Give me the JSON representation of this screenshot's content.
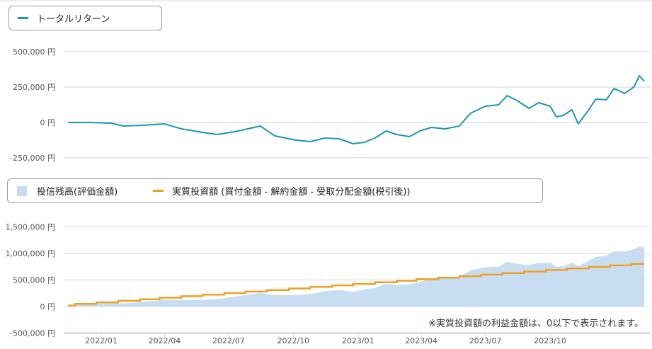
{
  "chart_data": [
    {
      "type": "line",
      "legend": [
        {
          "label": "トータルリターン",
          "color": "#1a96b8"
        }
      ],
      "y_ticks": [
        "500,000 円",
        "250,000 円",
        "0 円",
        "-250,000 円"
      ],
      "ylim": [
        -250000,
        500000
      ],
      "grid": true,
      "legend_placement": "top-left",
      "series": [
        {
          "name": "トータルリターン",
          "color": "#1a96b8",
          "points": [
            [
              "2021-11-15",
              0
            ],
            [
              "2021-12-15",
              0
            ],
            [
              "2022-01-15",
              -5000
            ],
            [
              "2022-02-01",
              -25000
            ],
            [
              "2022-03-01",
              -20000
            ],
            [
              "2022-04-01",
              -10000
            ],
            [
              "2022-04-25",
              -45000
            ],
            [
              "2022-05-25",
              -70000
            ],
            [
              "2022-06-15",
              -85000
            ],
            [
              "2022-07-15",
              -60000
            ],
            [
              "2022-08-15",
              -25000
            ],
            [
              "2022-09-05",
              -95000
            ],
            [
              "2022-10-05",
              -125000
            ],
            [
              "2022-10-25",
              -135000
            ],
            [
              "2022-11-15",
              -110000
            ],
            [
              "2022-12-05",
              -115000
            ],
            [
              "2022-12-25",
              -150000
            ],
            [
              "2023-01-10",
              -140000
            ],
            [
              "2023-01-25",
              -110000
            ],
            [
              "2023-02-10",
              -60000
            ],
            [
              "2023-02-25",
              -85000
            ],
            [
              "2023-03-15",
              -100000
            ],
            [
              "2023-03-30",
              -60000
            ],
            [
              "2023-04-15",
              -35000
            ],
            [
              "2023-05-05",
              -45000
            ],
            [
              "2023-05-25",
              -25000
            ],
            [
              "2023-06-10",
              65000
            ],
            [
              "2023-07-01",
              115000
            ],
            [
              "2023-07-20",
              125000
            ],
            [
              "2023-08-01",
              190000
            ],
            [
              "2023-08-15",
              155000
            ],
            [
              "2023-09-01",
              100000
            ],
            [
              "2023-09-15",
              140000
            ],
            [
              "2023-10-01",
              115000
            ],
            [
              "2023-10-10",
              40000
            ],
            [
              "2023-10-20",
              50000
            ],
            [
              "2023-11-01",
              90000
            ],
            [
              "2023-11-10",
              -10000
            ],
            [
              "2023-11-25",
              90000
            ],
            [
              "2023-12-05",
              165000
            ],
            [
              "2023-12-20",
              160000
            ],
            [
              "2023-12-31",
              240000
            ],
            [
              "2024-01-15",
              205000
            ],
            [
              "2024-01-28",
              250000
            ],
            [
              "2024-02-05",
              330000
            ],
            [
              "2024-02-12",
              290000
            ]
          ]
        }
      ]
    },
    {
      "type": "area",
      "legend": [
        {
          "label": "投信残高(評価金額)",
          "color": "#c8dcf2"
        },
        {
          "label": "実質投資額 (買付金額 - 解約金額 - 受取分配金額(税引後))",
          "color": "#f0a020"
        }
      ],
      "y_ticks": [
        "1,500,000 円",
        "1,000,000 円",
        "500,000 円",
        "0 円",
        "-500,000 円"
      ],
      "ylim": [
        -500000,
        1500000
      ],
      "x_ticks": [
        "2022/01",
        "2022/04",
        "2022/07",
        "2022/10",
        "2023/01",
        "2023/04",
        "2023/07",
        "2023/10"
      ],
      "grid": true,
      "legend_placement": "top-left",
      "note": "※実質投資額の利益金額は、0以下で表示されます。",
      "series": [
        {
          "name": "投信残高(評価金額)",
          "type": "area",
          "color": "#c8dcf2",
          "points": [
            [
              "2021-11-15",
              20000
            ],
            [
              "2021-12-15",
              50000
            ],
            [
              "2022-01-15",
              75000
            ],
            [
              "2022-02-01",
              55000
            ],
            [
              "2022-03-01",
              90000
            ],
            [
              "2022-04-01",
              125000
            ],
            [
              "2022-04-25",
              120000
            ],
            [
              "2022-05-25",
              125000
            ],
            [
              "2022-06-15",
              140000
            ],
            [
              "2022-07-15",
              195000
            ],
            [
              "2022-08-15",
              255000
            ],
            [
              "2022-09-05",
              215000
            ],
            [
              "2022-10-05",
              215000
            ],
            [
              "2022-10-25",
              235000
            ],
            [
              "2022-11-15",
              290000
            ],
            [
              "2022-12-05",
              310000
            ],
            [
              "2022-12-25",
              275000
            ],
            [
              "2023-01-10",
              320000
            ],
            [
              "2023-01-25",
              350000
            ],
            [
              "2023-02-10",
              430000
            ],
            [
              "2023-02-25",
              405000
            ],
            [
              "2023-03-15",
              420000
            ],
            [
              "2023-03-30",
              460000
            ],
            [
              "2023-04-15",
              525000
            ],
            [
              "2023-05-05",
              545000
            ],
            [
              "2023-05-25",
              565000
            ],
            [
              "2023-06-10",
              680000
            ],
            [
              "2023-07-01",
              740000
            ],
            [
              "2023-07-20",
              750000
            ],
            [
              "2023-08-01",
              840000
            ],
            [
              "2023-08-15",
              805000
            ],
            [
              "2023-09-01",
              780000
            ],
            [
              "2023-09-15",
              820000
            ],
            [
              "2023-10-01",
              825000
            ],
            [
              "2023-10-10",
              750000
            ],
            [
              "2023-10-20",
              760000
            ],
            [
              "2023-11-01",
              830000
            ],
            [
              "2023-11-10",
              760000
            ],
            [
              "2023-11-25",
              860000
            ],
            [
              "2023-12-05",
              935000
            ],
            [
              "2023-12-20",
              960000
            ],
            [
              "2023-12-31",
              1040000
            ],
            [
              "2024-01-15",
              1035000
            ],
            [
              "2024-01-28",
              1080000
            ],
            [
              "2024-02-05",
              1130000
            ],
            [
              "2024-02-12",
              1110000
            ]
          ]
        },
        {
          "name": "実質投資額 (買付金額 - 解約金額 - 受取分配金額(税引後))",
          "type": "step",
          "color": "#f0a020",
          "points": [
            [
              "2021-11-15",
              20000
            ],
            [
              "2021-11-25",
              50000
            ],
            [
              "2021-12-25",
              79000
            ],
            [
              "2022-01-25",
              108000
            ],
            [
              "2022-02-25",
              137000
            ],
            [
              "2022-03-25",
              166000
            ],
            [
              "2022-04-25",
              195000
            ],
            [
              "2022-05-25",
              224000
            ],
            [
              "2022-06-25",
              253000
            ],
            [
              "2022-07-25",
              282000
            ],
            [
              "2022-08-25",
              311000
            ],
            [
              "2022-09-25",
              340000
            ],
            [
              "2022-10-25",
              369000
            ],
            [
              "2022-11-25",
              398000
            ],
            [
              "2022-12-25",
              427000
            ],
            [
              "2023-01-25",
              456000
            ],
            [
              "2023-02-25",
              485000
            ],
            [
              "2023-03-25",
              514000
            ],
            [
              "2023-04-25",
              543000
            ],
            [
              "2023-05-25",
              572000
            ],
            [
              "2023-06-25",
              601000
            ],
            [
              "2023-07-25",
              630000
            ],
            [
              "2023-08-25",
              659000
            ],
            [
              "2023-09-25",
              688000
            ],
            [
              "2023-10-25",
              717000
            ],
            [
              "2023-11-25",
              746000
            ],
            [
              "2023-12-25",
              775000
            ],
            [
              "2024-01-25",
              804000
            ],
            [
              "2024-02-12",
              804000
            ]
          ]
        }
      ]
    }
  ]
}
